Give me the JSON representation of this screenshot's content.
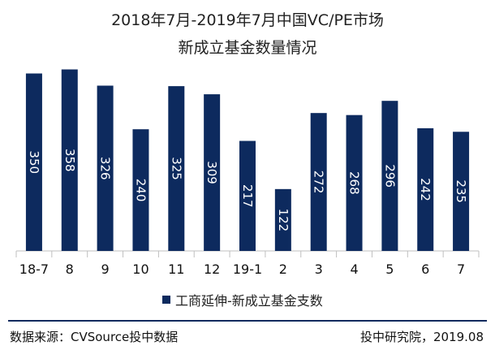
{
  "chart_data": {
    "type": "bar",
    "title": "2018年7月-2019年7月中国VC/PE市场",
    "subtitle": "新成立基金数量情况",
    "categories": [
      "18-7",
      "8",
      "9",
      "10",
      "11",
      "12",
      "19-1",
      "2",
      "3",
      "4",
      "5",
      "6",
      "7"
    ],
    "series": [
      {
        "name": "工商延伸-新成立基金支数",
        "values": [
          350,
          358,
          326,
          240,
          325,
          309,
          217,
          122,
          272,
          268,
          296,
          242,
          235
        ]
      }
    ],
    "ylim": [
      0,
      370
    ],
    "grid": false,
    "legend_position": "bottom",
    "bar_color": "#0d2a5e",
    "label_color": "#ffffff"
  },
  "footer": {
    "source": "数据来源：CVSource投中数据",
    "credit": "投中研究院，2019.08"
  }
}
